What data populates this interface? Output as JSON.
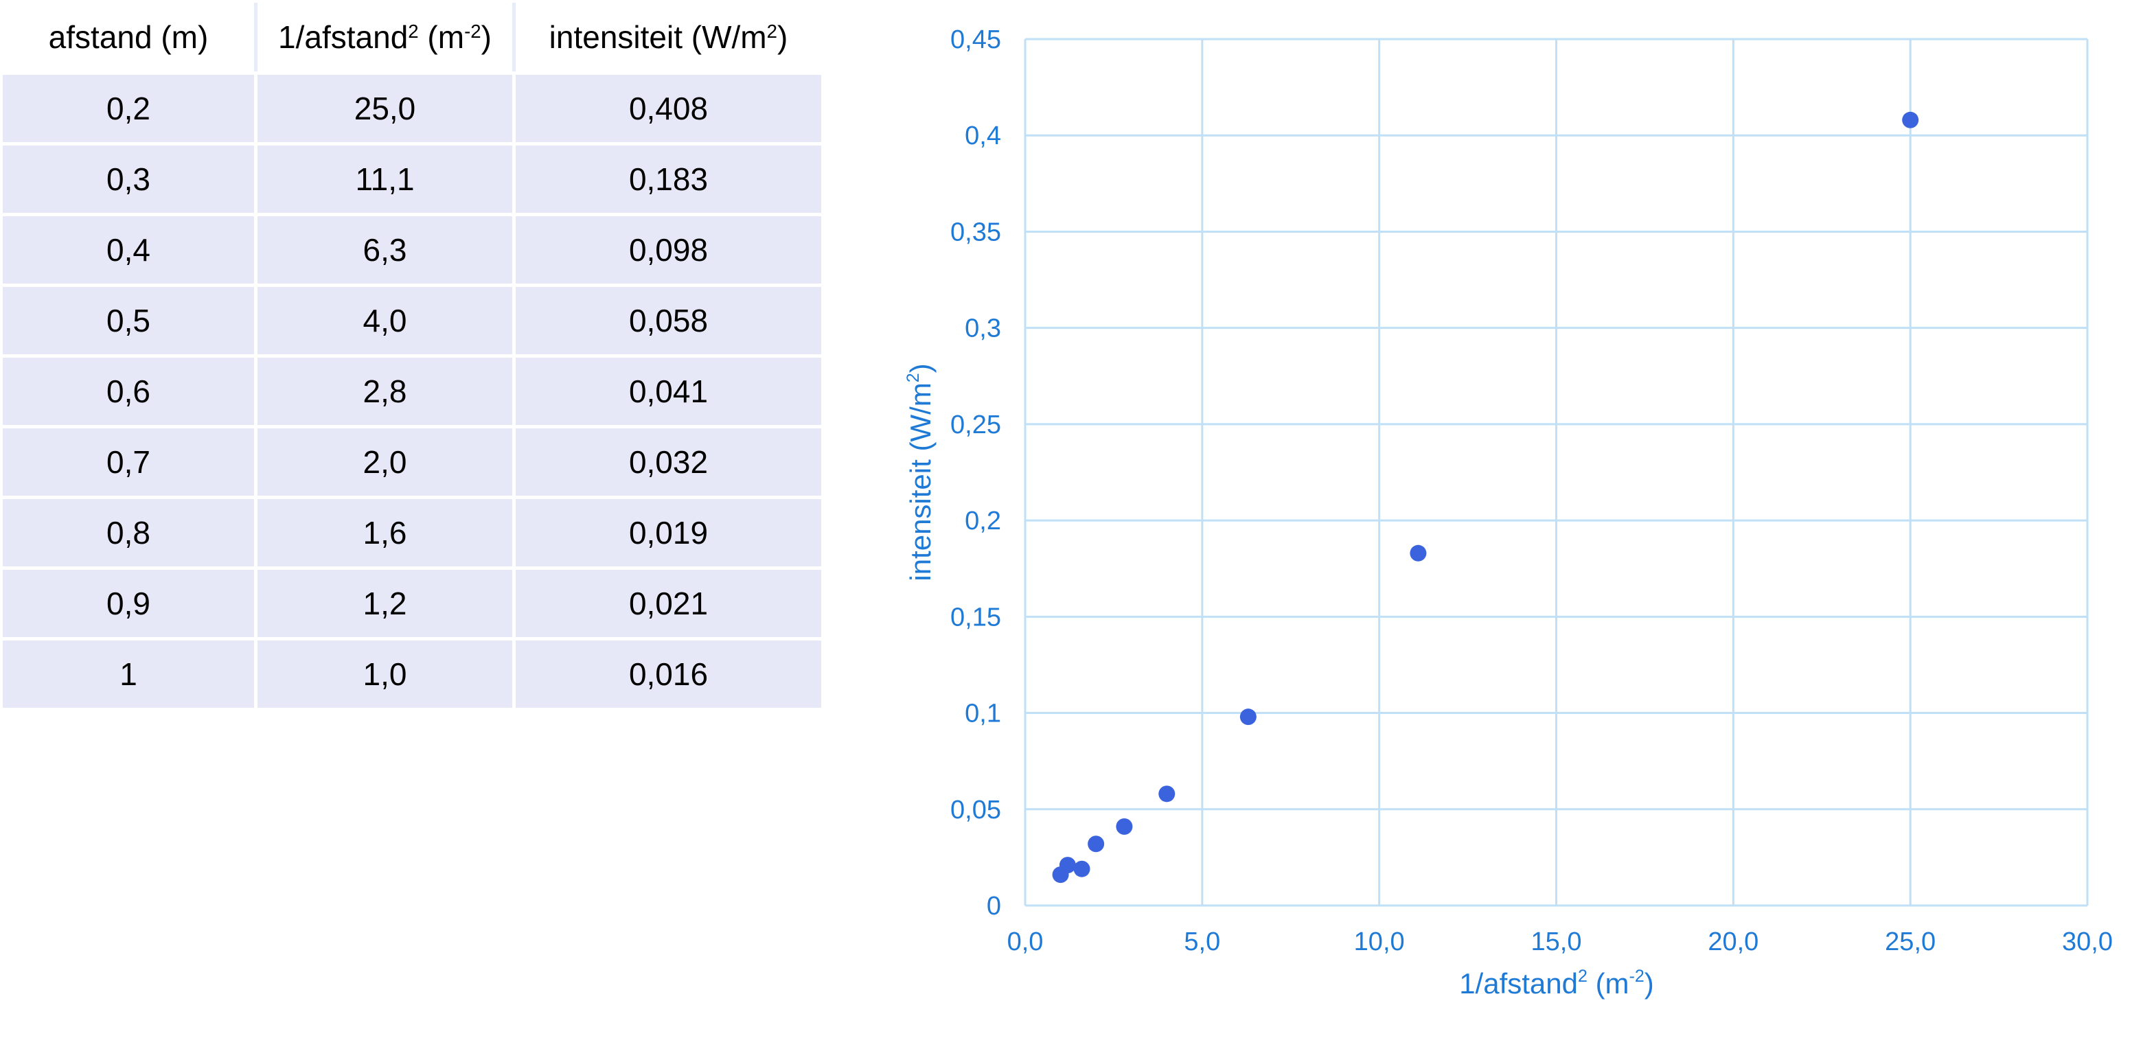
{
  "table": {
    "headers": [
      {
        "text": "afstand (m)",
        "sup": "",
        "after": ""
      },
      {
        "text": "1/afstand",
        "sup": "2",
        "after": " (m",
        "sup2": "-2",
        "after2": ")"
      },
      {
        "text": "intensiteit (W/m",
        "sup": "2",
        "after": ")"
      }
    ],
    "rows": [
      [
        "0,2",
        "25,0",
        "0,408"
      ],
      [
        "0,3",
        "11,1",
        "0,183"
      ],
      [
        "0,4",
        "6,3",
        "0,098"
      ],
      [
        "0,5",
        "4,0",
        "0,058"
      ],
      [
        "0,6",
        "2,8",
        "0,041"
      ],
      [
        "0,7",
        "2,0",
        "0,032"
      ],
      [
        "0,8",
        "1,6",
        "0,019"
      ],
      [
        "0,9",
        "1,2",
        "0,021"
      ],
      [
        "1",
        "1,0",
        "0,016"
      ]
    ]
  },
  "chart_data": {
    "type": "scatter",
    "x": [
      25.0,
      11.1,
      6.3,
      4.0,
      2.8,
      2.0,
      1.6,
      1.2,
      1.0
    ],
    "y": [
      0.408,
      0.183,
      0.098,
      0.058,
      0.041,
      0.032,
      0.019,
      0.021,
      0.016
    ],
    "xlabel": {
      "text": "1/afstand",
      "sup": "2",
      "after": " (m",
      "sup2": "-2",
      "after2": ")"
    },
    "ylabel": {
      "text": "intensiteit (W/m",
      "sup": "2",
      "after": ")"
    },
    "xlim": [
      0,
      30
    ],
    "ylim": [
      0,
      0.45
    ],
    "xticks": [
      "0,0",
      "5,0",
      "10,0",
      "15,0",
      "20,0",
      "25,0",
      "30,0"
    ],
    "yticks": [
      "0",
      "0,05",
      "0,1",
      "0,15",
      "0,2",
      "0,25",
      "0,3",
      "0,35",
      "0,4",
      "0,45"
    ],
    "grid": true,
    "colors": {
      "marker": "#3b63dd",
      "grid": "#bfe0f6",
      "text": "#1f7ad6"
    }
  }
}
